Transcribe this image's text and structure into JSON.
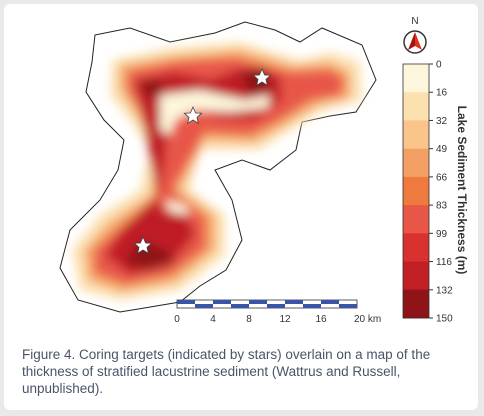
{
  "north": "N",
  "legend": {
    "title": "Lake Sediment Thickness (m)",
    "ticks": [
      0,
      16,
      32,
      49,
      66,
      83,
      99,
      116,
      132,
      150
    ],
    "colors": [
      "#fdf6dc",
      "#fbe0b0",
      "#f9c58a",
      "#f4a064",
      "#ee7a3e",
      "#e85648",
      "#d93030",
      "#c01f26",
      "#8e1418"
    ]
  },
  "scale_bar": {
    "labels": [
      "0",
      "4",
      "8",
      "12",
      "16",
      "20 km"
    ]
  },
  "caption": "Figure 4. Coring targets (indicated by stars) overlain on a map of the thickness of stratified lacustrine sediment (Wattrus and Russell, unpublished)."
}
